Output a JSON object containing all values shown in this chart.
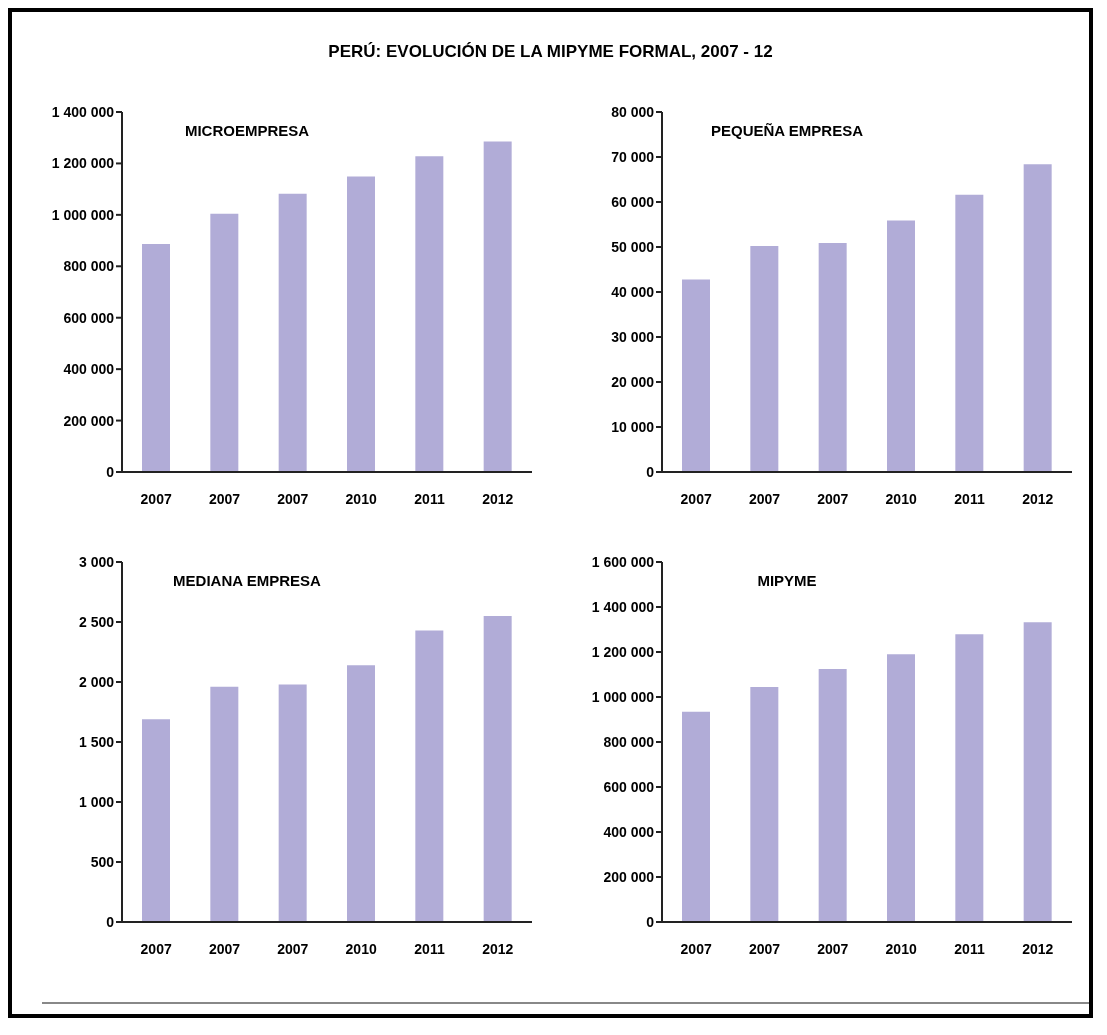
{
  "chart_data": [
    {
      "type": "bar",
      "annotations": [
        "PERÚ: EVOLUCIÓN DE LA MIPYME FORMAL, 2007 - 12"
      ],
      "title": "MICROEMPRESA",
      "categories": [
        "2007",
        "2007",
        "2007",
        "2010",
        "2011",
        "2012"
      ],
      "values": [
        887000,
        1004000,
        1082000,
        1149000,
        1228000,
        1285000
      ],
      "color": "#b1acd7",
      "ylim": [
        0,
        1400000
      ],
      "yticks": [
        {
          "value": 0,
          "label": "0"
        },
        {
          "value": 200000,
          "label": "200 000"
        },
        {
          "value": 400000,
          "label": "400 000"
        },
        {
          "value": 600000,
          "label": "600 000"
        },
        {
          "value": 800000,
          "label": "800 000"
        },
        {
          "value": 1000000,
          "label": "1 000 000"
        },
        {
          "value": 1200000,
          "label": "1 200 000"
        },
        {
          "value": 1400000,
          "label": "1 400 000"
        }
      ]
    },
    {
      "type": "bar",
      "title": "PEQUEÑA EMPRESA",
      "categories": [
        "2007",
        "2007",
        "2007",
        "2010",
        "2011",
        "2012"
      ],
      "values": [
        42800,
        50200,
        50900,
        55900,
        61600,
        68400
      ],
      "color": "#b1acd7",
      "ylim": [
        0,
        80000
      ],
      "yticks": [
        {
          "value": 0,
          "label": "0"
        },
        {
          "value": 10000,
          "label": "10 000"
        },
        {
          "value": 20000,
          "label": "20 000"
        },
        {
          "value": 30000,
          "label": "30 000"
        },
        {
          "value": 40000,
          "label": "40 000"
        },
        {
          "value": 50000,
          "label": "50 000"
        },
        {
          "value": 60000,
          "label": "60 000"
        },
        {
          "value": 70000,
          "label": "70 000"
        },
        {
          "value": 80000,
          "label": "80 000"
        }
      ]
    },
    {
      "type": "bar",
      "title": "MEDIANA EMPRESA",
      "categories": [
        "2007",
        "2007",
        "2007",
        "2010",
        "2011",
        "2012"
      ],
      "values": [
        1690,
        1960,
        1980,
        2140,
        2430,
        2550
      ],
      "color": "#b1acd7",
      "ylim": [
        0,
        3000
      ],
      "yticks": [
        {
          "value": 0,
          "label": "0"
        },
        {
          "value": 500,
          "label": "500"
        },
        {
          "value": 1000,
          "label": "1 000"
        },
        {
          "value": 1500,
          "label": "1 500"
        },
        {
          "value": 2000,
          "label": "2 000"
        },
        {
          "value": 2500,
          "label": "2 500"
        },
        {
          "value": 3000,
          "label": "3 000"
        }
      ]
    },
    {
      "type": "bar",
      "title": "MIPYME",
      "categories": [
        "2007",
        "2007",
        "2007",
        "2010",
        "2011",
        "2012"
      ],
      "values": [
        934000,
        1045000,
        1125000,
        1190000,
        1279000,
        1332000
      ],
      "color": "#b1acd7",
      "ylim": [
        0,
        1600000
      ],
      "yticks": [
        {
          "value": 0,
          "label": "0"
        },
        {
          "value": 200000,
          "label": "200 000"
        },
        {
          "value": 400000,
          "label": "400 000"
        },
        {
          "value": 600000,
          "label": "600 000"
        },
        {
          "value": 800000,
          "label": "800 000"
        },
        {
          "value": 1000000,
          "label": "1 000 000"
        },
        {
          "value": 1200000,
          "label": "1 200 000"
        },
        {
          "value": 1400000,
          "label": "1 400 000"
        },
        {
          "value": 1600000,
          "label": "1 600 000"
        }
      ]
    }
  ]
}
